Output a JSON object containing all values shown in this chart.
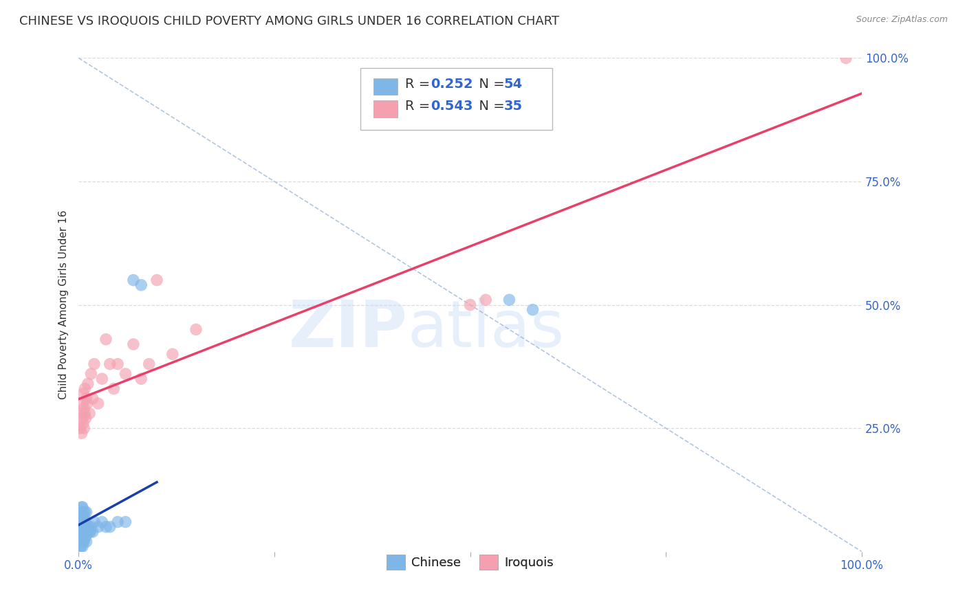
{
  "title": "CHINESE VS IROQUOIS CHILD POVERTY AMONG GIRLS UNDER 16 CORRELATION CHART",
  "source": "Source: ZipAtlas.com",
  "ylabel": "Child Poverty Among Girls Under 16",
  "xlim": [
    0,
    1
  ],
  "ylim": [
    0,
    1
  ],
  "xticks": [
    0,
    0.25,
    0.5,
    0.75,
    1.0
  ],
  "xticklabels": [
    "0.0%",
    "",
    "",
    "",
    "100.0%"
  ],
  "ytick_labels_right": [
    "100.0%",
    "75.0%",
    "50.0%",
    "25.0%"
  ],
  "ytick_positions_right": [
    1.0,
    0.75,
    0.5,
    0.25
  ],
  "chinese_color": "#7EB6E8",
  "iroquois_color": "#F4A0B0",
  "chinese_line_color": "#1A3FA8",
  "iroquois_line_color": "#E8406A",
  "diagonal_color": "#A0B8D8",
  "grid_color": "#D8D8D8",
  "background_color": "#FFFFFF",
  "chinese_x": [
    0.001,
    0.001,
    0.001,
    0.002,
    0.002,
    0.002,
    0.002,
    0.003,
    0.003,
    0.003,
    0.003,
    0.003,
    0.004,
    0.004,
    0.004,
    0.004,
    0.005,
    0.005,
    0.005,
    0.005,
    0.005,
    0.006,
    0.006,
    0.006,
    0.006,
    0.007,
    0.007,
    0.007,
    0.008,
    0.008,
    0.008,
    0.009,
    0.009,
    0.01,
    0.01,
    0.01,
    0.011,
    0.012,
    0.013,
    0.014,
    0.015,
    0.016,
    0.018,
    0.02,
    0.025,
    0.03,
    0.035,
    0.04,
    0.05,
    0.06,
    0.07,
    0.08,
    0.55,
    0.58
  ],
  "chinese_y": [
    0.02,
    0.04,
    0.06,
    0.01,
    0.03,
    0.05,
    0.07,
    0.02,
    0.04,
    0.06,
    0.08,
    0.01,
    0.03,
    0.05,
    0.07,
    0.09,
    0.01,
    0.03,
    0.05,
    0.07,
    0.09,
    0.02,
    0.04,
    0.06,
    0.08,
    0.02,
    0.04,
    0.07,
    0.03,
    0.05,
    0.08,
    0.03,
    0.06,
    0.02,
    0.05,
    0.08,
    0.04,
    0.04,
    0.05,
    0.04,
    0.04,
    0.05,
    0.04,
    0.06,
    0.05,
    0.06,
    0.05,
    0.05,
    0.06,
    0.06,
    0.55,
    0.54,
    0.51,
    0.49
  ],
  "iroquois_x": [
    0.002,
    0.003,
    0.004,
    0.005,
    0.005,
    0.006,
    0.006,
    0.007,
    0.007,
    0.008,
    0.008,
    0.009,
    0.01,
    0.011,
    0.012,
    0.014,
    0.016,
    0.018,
    0.02,
    0.025,
    0.03,
    0.035,
    0.04,
    0.045,
    0.05,
    0.06,
    0.07,
    0.08,
    0.09,
    0.1,
    0.12,
    0.15,
    0.5,
    0.52,
    0.98
  ],
  "iroquois_y": [
    0.25,
    0.28,
    0.24,
    0.27,
    0.3,
    0.26,
    0.32,
    0.25,
    0.29,
    0.28,
    0.33,
    0.27,
    0.31,
    0.3,
    0.34,
    0.28,
    0.36,
    0.31,
    0.38,
    0.3,
    0.35,
    0.43,
    0.38,
    0.33,
    0.38,
    0.36,
    0.42,
    0.35,
    0.38,
    0.55,
    0.4,
    0.45,
    0.5,
    0.51,
    1.0
  ],
  "watermark_zip": "ZIP",
  "watermark_atlas": "atlas",
  "title_fontsize": 13,
  "axis_label_fontsize": 11,
  "tick_fontsize": 12,
  "legend_r1": "R = 0.252",
  "legend_n1": "N = 54",
  "legend_r2": "R = 0.543",
  "legend_n2": "N = 35"
}
